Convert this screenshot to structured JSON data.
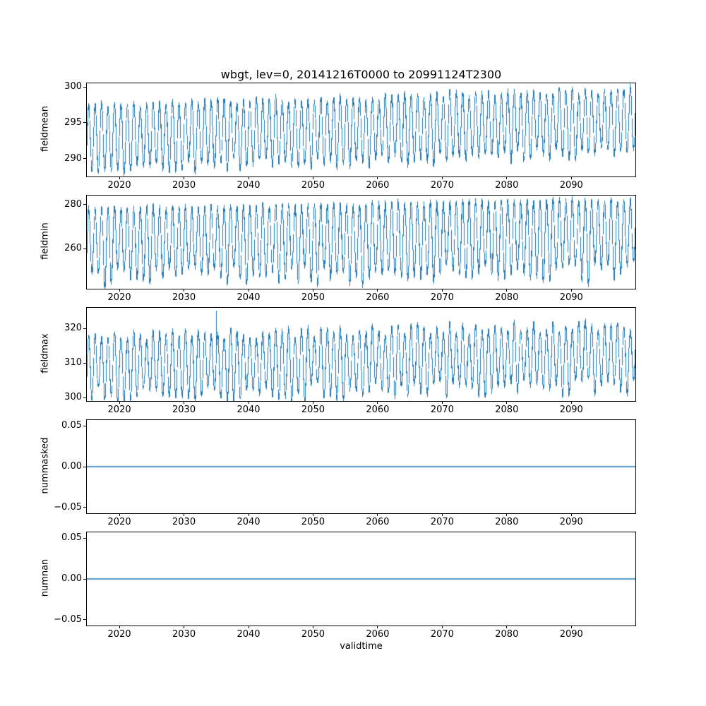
{
  "title": "wbgt, lev=0, 20141216T0000 to 20991124T2300",
  "xlabel": "validtime",
  "colors": {
    "line": "#1f77b4",
    "axis": "#000000",
    "background": "#ffffff",
    "text": "#000000"
  },
  "xticks": [
    2020,
    2030,
    2040,
    2050,
    2060,
    2070,
    2080,
    2090
  ],
  "xtick_labels": [
    "2020",
    "2030",
    "2040",
    "2050",
    "2060",
    "2070",
    "2080",
    "2090"
  ],
  "chart_data": [
    {
      "type": "line",
      "series_name": "fieldmean",
      "ylabel": "fieldmean",
      "style": "dense-oscillation",
      "xlim": [
        2014.96,
        2099.92
      ],
      "ylim": [
        287.5,
        300.5
      ],
      "yticks": [
        290,
        295,
        300
      ],
      "ytick_labels": [
        "290",
        "295",
        "300"
      ],
      "band_start": [
        288.4,
        297.4
      ],
      "band_end": [
        290.9,
        299.6
      ],
      "jitter_up": 0.12,
      "jitter_down": 0.22,
      "seed": 11
    },
    {
      "type": "line",
      "series_name": "fieldmin",
      "ylabel": "fieldmin",
      "style": "dense-oscillation",
      "xlim": [
        2014.96,
        2099.92
      ],
      "ylim": [
        242,
        284
      ],
      "yticks": [
        260,
        280
      ],
      "ytick_labels": [
        "260",
        "280"
      ],
      "band_start": [
        246.5,
        278.2
      ],
      "band_end": [
        249.5,
        282.3
      ],
      "jitter_up": 0.05,
      "jitter_down": 0.32,
      "seed": 22
    },
    {
      "type": "line",
      "series_name": "fieldmax",
      "ylabel": "fieldmax",
      "style": "dense-oscillation",
      "xlim": [
        2014.96,
        2099.92
      ],
      "ylim": [
        299,
        326
      ],
      "yticks": [
        300,
        310,
        320
      ],
      "ytick_labels": [
        "300",
        "310",
        "320"
      ],
      "band_start": [
        300.7,
        317.6
      ],
      "band_end": [
        303.4,
        320.9
      ],
      "jitter_up": 0.22,
      "jitter_down": 0.3,
      "seed": 33,
      "spike": {
        "x": 2035.0,
        "value": 325.2
      }
    },
    {
      "type": "line",
      "series_name": "nummasked",
      "ylabel": "nummasked",
      "style": "flat",
      "value": 0,
      "xlim": [
        2014.96,
        2099.92
      ],
      "ylim": [
        -0.057,
        0.057
      ],
      "yticks": [
        -0.05,
        0,
        0.05
      ],
      "ytick_labels": [
        "−0.05",
        "0.00",
        "0.05"
      ]
    },
    {
      "type": "line",
      "series_name": "numnan",
      "ylabel": "numnan",
      "style": "flat",
      "value": 0,
      "xlim": [
        2014.96,
        2099.92
      ],
      "ylim": [
        -0.057,
        0.057
      ],
      "yticks": [
        -0.05,
        0,
        0.05
      ],
      "ytick_labels": [
        "−0.05",
        "0.00",
        "0.05"
      ]
    }
  ]
}
